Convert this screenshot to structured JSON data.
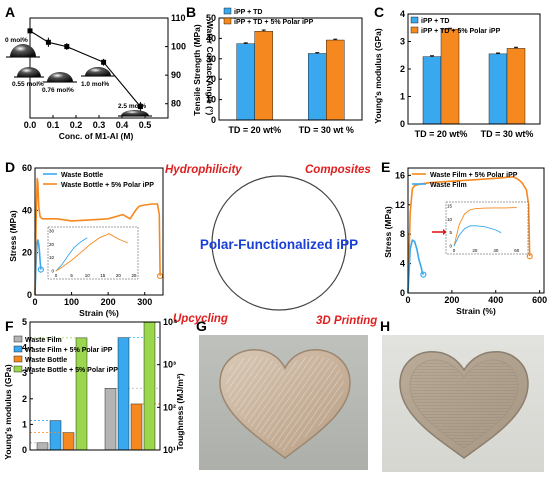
{
  "panel_labels": [
    "A",
    "B",
    "C",
    "D",
    "E",
    "F",
    "G",
    "H"
  ],
  "center": {
    "title": "Polar-Functionalized iPP",
    "keywords": [
      "Hydrophilicity",
      "Composites",
      "Upcycling",
      "3D Printing"
    ]
  },
  "colors": {
    "blue": "#3aa8ee",
    "orange": "#f5891f",
    "gray": "#b4b4b4",
    "green": "#9ad64e",
    "accent_red": "#e02020",
    "center_blue": "#1a3fd6"
  },
  "panel_a": {
    "xlabel": "Conc. of M1-Al (M)",
    "ylabel": "Water Contact Angle (°)",
    "droplet_labels": [
      "0 mol%",
      "0.55 mol%",
      "0.76 mol%",
      "1.0 mol%",
      "2.5 mol%"
    ]
  },
  "panel_b": {
    "ylabel": "Tensile Strength (MPa)",
    "legend": [
      "iPP + TD",
      "iPP + TD + 5% Polar iPP"
    ]
  },
  "panel_c": {
    "ylabel": "Young's modulus (GPa)",
    "legend": [
      "iPP + TD",
      "iPP + TD + 5% Polar iPP"
    ]
  },
  "panel_d": {
    "xlabel": "Strain (%)",
    "ylabel": "Stress (MPa)",
    "legend": [
      "Waste Bottle",
      "Waste Bottle + 5% Polar iPP"
    ]
  },
  "panel_e": {
    "xlabel": "Strain (%)",
    "ylabel": "Stress (MPa)",
    "legend": [
      "Waste Film + 5% Polar iPP",
      "Waste Film"
    ]
  },
  "panel_f": {
    "ylabel_left": "Young's modulus (GPa)",
    "ylabel_right": "Toughness (MJ/m³)",
    "legend": [
      "Waste Film",
      "Waste Film + 5% Polar iPP",
      "Waste Bottle",
      "Waste Bottle + 5% Polar iPP"
    ]
  },
  "chart_data": [
    {
      "panel": "A",
      "type": "line",
      "xlabel": "Conc. of M1-Al (M)",
      "ylabel": "Water Contact Angle (°)",
      "xlim": [
        0,
        0.6
      ],
      "ylim": [
        75,
        110
      ],
      "xticks": [
        "0.0",
        "0.1",
        "0.2",
        "0.3",
        "0.4",
        "0.5"
      ],
      "yticks": [
        "80",
        "90",
        "100",
        "110"
      ],
      "x": [
        0.0,
        0.08,
        0.16,
        0.32,
        0.48
      ],
      "y": [
        105.5,
        101.5,
        100.0,
        94.5,
        79.0
      ],
      "yerr": [
        0.6,
        1.6,
        1.2,
        1.2,
        1.6
      ]
    },
    {
      "panel": "B",
      "type": "bar",
      "ylabel": "Tensile Strength (MPa)",
      "ylim": [
        0,
        50
      ],
      "yticks": [
        "0",
        "10",
        "20",
        "30",
        "40",
        "50"
      ],
      "categories": [
        "TD = 20 wt%",
        "TD = 30 wt %"
      ],
      "series": [
        {
          "name": "iPP + TD",
          "values": [
            37.4,
            32.6
          ],
          "err": [
            0.4,
            0.4
          ]
        },
        {
          "name": "iPP + TD + 5% Polar iPP",
          "values": [
            43.5,
            39.2
          ],
          "err": [
            0.6,
            0.4
          ]
        }
      ]
    },
    {
      "panel": "C",
      "type": "bar",
      "ylabel": "Young's modulus (GPa)",
      "ylim": [
        0,
        4
      ],
      "yticks": [
        "0",
        "1",
        "2",
        "3",
        "4"
      ],
      "categories": [
        "TD = 20 wt%",
        "TD = 30 wt%"
      ],
      "series": [
        {
          "name": "iPP + TD",
          "values": [
            2.45,
            2.55
          ],
          "err": [
            0.03,
            0.03
          ]
        },
        {
          "name": "iPP + TD + 5% Polar iPP",
          "values": [
            3.45,
            2.75
          ],
          "err": [
            0.03,
            0.04
          ]
        }
      ]
    },
    {
      "panel": "D",
      "type": "line",
      "xlabel": "Strain (%)",
      "ylabel": "Stress (MPa)",
      "xlim": [
        0,
        350
      ],
      "ylim": [
        0,
        60
      ],
      "xticks": [
        "0",
        "100",
        "200",
        "300"
      ],
      "yticks": [
        "0",
        "20",
        "40",
        "60"
      ],
      "series": [
        {
          "name": "Waste Bottle",
          "x": [
            0,
            2,
            4,
            6,
            8,
            10,
            12,
            14,
            16
          ],
          "y": [
            0,
            10,
            20,
            25,
            26,
            24,
            21,
            16,
            12
          ]
        },
        {
          "name": "Waste Bottle + 5% Polar iPP",
          "x": [
            0,
            3,
            6,
            8,
            10,
            14,
            20,
            30,
            60,
            100,
            150,
            200,
            240,
            260,
            275,
            285,
            300,
            320,
            335,
            340,
            342
          ],
          "y": [
            0,
            35,
            55,
            53,
            42,
            37,
            36,
            36,
            36,
            35,
            35.5,
            36,
            38,
            36,
            40,
            42,
            42.5,
            43,
            43,
            38,
            9
          ]
        }
      ],
      "inset": {
        "xlim": [
          0,
          25
        ],
        "ylim": [
          0,
          30
        ],
        "xticks": [
          "0",
          "5",
          "10",
          "15",
          "20",
          "25"
        ],
        "yticks": [
          "0",
          "10",
          "20",
          "30"
        ],
        "series": [
          {
            "name": "Waste Bottle",
            "x": [
              0,
              2,
              4,
              6,
              8,
              10
            ],
            "y": [
              0,
              5,
              12,
              18,
              22,
              25
            ]
          },
          {
            "name": "Waste Bottle + 5% Polar iPP",
            "x": [
              0,
              2,
              5,
              8,
              11,
              14,
              17,
              20,
              23
            ],
            "y": [
              0,
              3,
              8,
              14,
              20,
              25,
              28,
              24,
              21
            ]
          }
        ]
      }
    },
    {
      "panel": "E",
      "type": "line",
      "xlabel": "Strain (%)",
      "ylabel": "Stress (MPa)",
      "xlim": [
        0,
        620
      ],
      "ylim": [
        0,
        17
      ],
      "xticks": [
        "0",
        "200",
        "400",
        "600"
      ],
      "yticks": [
        "0",
        "4",
        "8",
        "12",
        "16"
      ],
      "series": [
        {
          "name": "Waste Film + 5% Polar iPP",
          "x": [
            0,
            10,
            20,
            30,
            50,
            100,
            200,
            300,
            400,
            480,
            500,
            520,
            540,
            550,
            555
          ],
          "y": [
            0,
            11,
            14.2,
            14.6,
            14.8,
            15.0,
            15.2,
            15.4,
            15.6,
            15.8,
            15.5,
            15.0,
            14.0,
            12.0,
            5.0
          ]
        },
        {
          "name": "Waste Film",
          "x": [
            0,
            10,
            20,
            30,
            40,
            50,
            60,
            65,
            70
          ],
          "y": [
            0,
            6,
            7.2,
            7.0,
            6.0,
            4.5,
            3.5,
            2.8,
            2.5
          ]
        }
      ],
      "inset": {
        "xlim": [
          0,
          65
        ],
        "ylim": [
          0,
          15
        ],
        "xticks": [
          "0",
          "20",
          "40",
          "60"
        ],
        "yticks": [
          "0",
          "5",
          "10",
          "15"
        ],
        "series": [
          {
            "name": "Waste Film + 5% Polar iPP",
            "x": [
              0,
              5,
              10,
              15,
              20,
              30,
              40,
              50,
              60
            ],
            "y": [
              0,
              8,
              12,
              13.5,
              14,
              14.2,
              14.3,
              14.3,
              14.4
            ]
          },
          {
            "name": "Waste Film",
            "x": [
              0,
              5,
              10,
              15,
              20,
              30,
              40,
              45
            ],
            "y": [
              0,
              4,
              6.5,
              7.5,
              7.6,
              7.2,
              6.0,
              5.0
            ]
          }
        ]
      }
    },
    {
      "panel": "F",
      "type": "bar",
      "ylabel": "Young's modulus (GPa)",
      "ylim": [
        0,
        5
      ],
      "yticks": [
        "0",
        "1",
        "2",
        "3",
        "4",
        "5"
      ],
      "y2label": "Toughness (MJ/m³)",
      "y2scale": "log",
      "y2lim": [
        10,
        10000
      ],
      "y2ticks": [
        "10¹",
        "10²",
        "10³",
        "10⁴"
      ],
      "groups": [
        "Young's modulus",
        "Toughness"
      ],
      "series": [
        {
          "name": "Waste Film",
          "modulus": 0.28,
          "toughness": 280
        },
        {
          "name": "Waste Film + 5% Polar iPP",
          "modulus": 1.15,
          "toughness": 4300
        },
        {
          "name": "Waste Bottle",
          "modulus": 0.68,
          "toughness": 120
        },
        {
          "name": "Waste Bottle + 5% Polar iPP",
          "modulus": 4.38,
          "toughness": 9800
        }
      ]
    }
  ]
}
